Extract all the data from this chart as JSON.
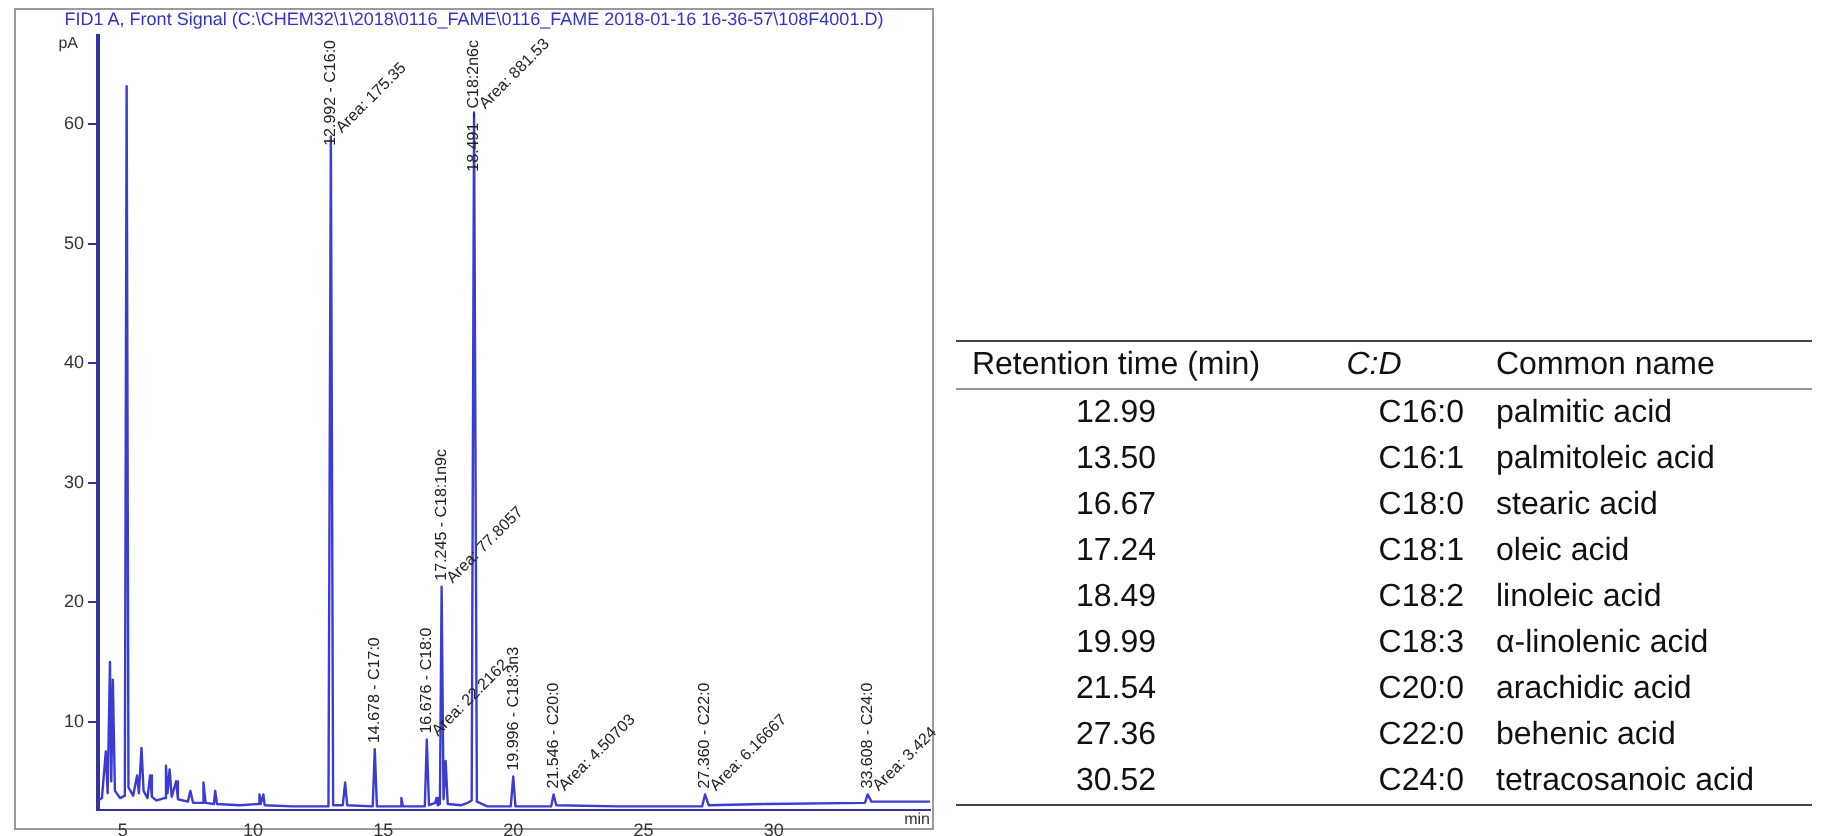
{
  "chart_data": [
    {
      "type": "line",
      "title": "FID1 A, Front Signal (C:\\CHEM32\\1\\2018\\0116_FAME\\0116_FAME 2018-01-16 16-36-57\\108F4001.D)",
      "xlabel": "min",
      "ylabel": "pA",
      "x": [
        4.06,
        4.2,
        4.35,
        4.42,
        4.51,
        4.56,
        4.62,
        4.7,
        4.9,
        5.08,
        5.15,
        5.22,
        5.4,
        5.55,
        5.62,
        5.72,
        5.8,
        5.95,
        6.05,
        6.12,
        6.3,
        6.6,
        6.66,
        6.72,
        6.8,
        6.88,
        7.05,
        7.12,
        7.5,
        7.6,
        7.7,
        8.05,
        8.1,
        8.18,
        8.5,
        8.55,
        8.62,
        9.5,
        10.2,
        10.25,
        10.3,
        10.4,
        10.45,
        11.5,
        12.9,
        12.992,
        13.08,
        13.45,
        13.54,
        13.62,
        14.6,
        14.678,
        14.76,
        15.65,
        15.7,
        15.76,
        16.6,
        16.676,
        16.76,
        17.0,
        17.05,
        17.1,
        17.18,
        17.245,
        17.32,
        17.4,
        17.48,
        18.0,
        18.25,
        18.4,
        18.491,
        18.6,
        19.0,
        19.9,
        19.996,
        20.08,
        21.45,
        21.546,
        21.65,
        24,
        27.25,
        27.36,
        27.5,
        29.7,
        33.5,
        33.608,
        33.75,
        36
      ],
      "series": [
        {
          "color": "#3c3cd2",
          "values": [
            3.4,
            3.6,
            7.5,
            4.0,
            15.0,
            5.0,
            13.5,
            4.2,
            3.6,
            3.8,
            63.2,
            4.5,
            3.8,
            5.5,
            4.0,
            7.8,
            4.2,
            3.6,
            5.5,
            3.7,
            3.4,
            3.6,
            6.3,
            4.0,
            6.0,
            3.7,
            5.0,
            3.5,
            3.3,
            4.2,
            3.2,
            3.2,
            4.9,
            3.2,
            3.1,
            4.2,
            3.1,
            3.0,
            3.1,
            3.9,
            3.1,
            3.9,
            3.0,
            2.9,
            2.9,
            59,
            3.0,
            3.0,
            4.9,
            3.0,
            2.9,
            7.7,
            2.9,
            2.9,
            3.6,
            2.9,
            2.9,
            8.5,
            3.0,
            3.2,
            3.6,
            3.0,
            3.1,
            21.3,
            3.5,
            6.7,
            3.1,
            3.0,
            3.2,
            3.4,
            61,
            3.3,
            2.9,
            2.9,
            5.4,
            2.9,
            2.9,
            3.9,
            3.0,
            2.9,
            2.9,
            3.9,
            3.0,
            3.1,
            3.2,
            3.9,
            3.3,
            3.3
          ]
        }
      ],
      "xlim": [
        4.05,
        36
      ],
      "ylim": [
        2.6,
        67.4
      ],
      "xticks": [
        5,
        10,
        15,
        20,
        25,
        30
      ],
      "yticks": [
        10,
        20,
        30,
        40,
        50,
        60
      ],
      "grid": false,
      "legend": false,
      "marker": "none",
      "line_style": "solid",
      "annotations": [
        {
          "text": "12.992 - C16:0",
          "x": 12.992,
          "y": 59
        },
        {
          "text": "Area: 175.35",
          "x": 12.992,
          "y": 59
        },
        {
          "text": "18.491 - C18:2n6c",
          "x": 18.491,
          "y": 61
        },
        {
          "text": "Area: 881.53",
          "x": 18.491,
          "y": 61
        },
        {
          "text": "17.245 - C18:1n9c",
          "x": 17.245,
          "y": 21.3
        },
        {
          "text": "Area: 77.8057",
          "x": 17.245,
          "y": 21.3
        },
        {
          "text": "14.678 - C17:0",
          "x": 14.678,
          "y": 7.7
        },
        {
          "text": "16.676 - C18:0",
          "x": 16.676,
          "y": 8.5
        },
        {
          "text": "Area: 22.2162",
          "x": 16.676,
          "y": 8.5
        },
        {
          "text": "19.996 - C18:3n3",
          "x": 19.996,
          "y": 5.4
        },
        {
          "text": "21.546 - C20:0",
          "x": 21.546,
          "y": 3.9
        },
        {
          "text": "Area: 4.50703",
          "x": 21.546,
          "y": 3.9
        },
        {
          "text": "27.360 - C22:0",
          "x": 27.36,
          "y": 3.9
        },
        {
          "text": "Area: 6.16667",
          "x": 27.36,
          "y": 3.9
        },
        {
          "text": "33.608 - C24:0",
          "x": 33.608,
          "y": 3.9
        },
        {
          "text": "Area: 3.424",
          "x": 33.608,
          "y": 3.9
        }
      ]
    },
    {
      "type": "other",
      "annotations": [
        "Retention time (min)",
        "C:D",
        "Common name",
        "12.99",
        "C16:0",
        "palmitic acid",
        "13.50",
        "C16:1",
        "palmitoleic acid",
        "16.67",
        "C18:0",
        "stearic acid",
        "17.24",
        "C18:1",
        "oleic acid",
        "18.49",
        "C18:2",
        "linoleic acid",
        "19.99",
        "C18:3",
        "α-linolenic acid",
        "21.54",
        "C20:0",
        "arachidic acid",
        "27.36",
        "C22:0",
        "behenic acid",
        "30.52",
        "C24:0",
        "tetracosanoic acid"
      ]
    }
  ]
}
